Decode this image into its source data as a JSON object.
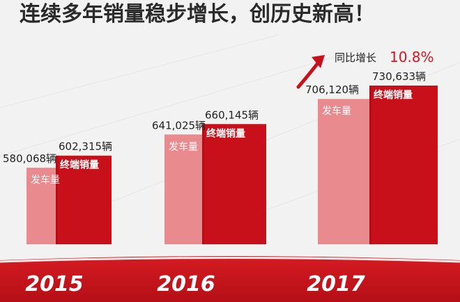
{
  "chart_data": {
    "type": "bar",
    "title": "连续多年销量稳步增长，创历史新高！",
    "categories": [
      "2015",
      "2016",
      "2017"
    ],
    "series": [
      {
        "name": "发车量",
        "values": [
          580068,
          641025,
          706120
        ],
        "labels": [
          "580,068辆",
          "641,025辆",
          "706,120辆"
        ]
      },
      {
        "name": "终端销量",
        "values": [
          602315,
          660145,
          730633
        ],
        "labels": [
          "602,315辆",
          "660,145辆",
          "730,633辆"
        ]
      }
    ],
    "annotation": {
      "prefix": "同比增长",
      "value": "10.8%"
    },
    "colors": {
      "pink": "#e88a8e",
      "red": "#c8101a",
      "text": "#222222",
      "annotation_red": "#d7141f",
      "floor": "#cf1920"
    }
  }
}
